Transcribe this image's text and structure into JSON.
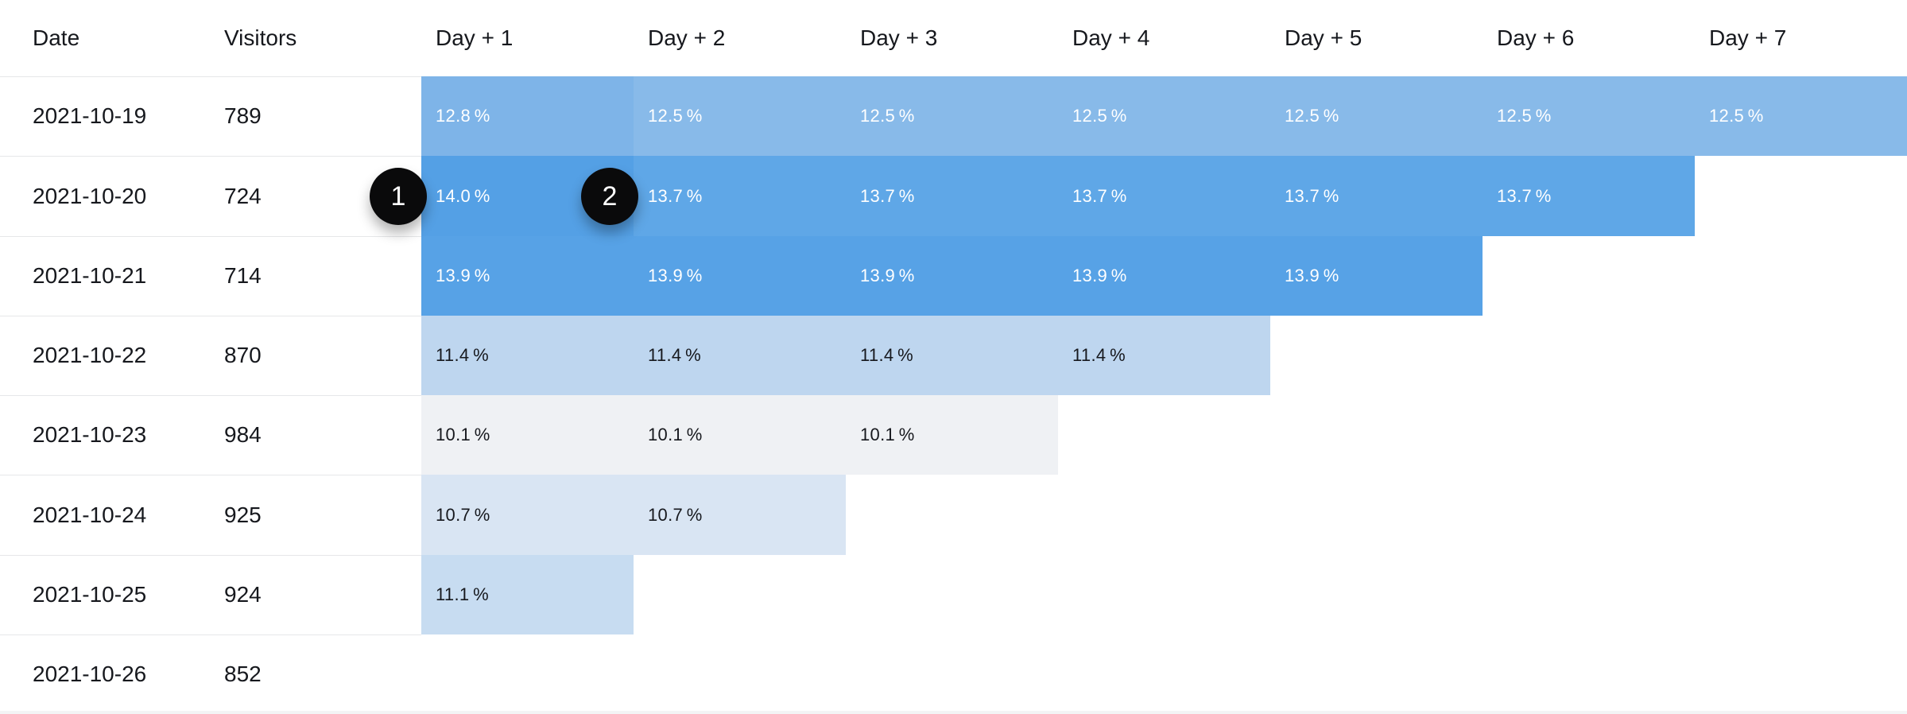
{
  "table": {
    "columns": [
      "Date",
      "Visitors",
      "Day + 1",
      "Day + 2",
      "Day + 3",
      "Day + 4",
      "Day + 5",
      "Day + 6",
      "Day + 7"
    ],
    "rows": [
      {
        "date": "2021-10-19",
        "visitors": "789",
        "cells": [
          {
            "value": "12.8 %",
            "bg": "#7eb4e8",
            "text_light": true
          },
          {
            "value": "12.5 %",
            "bg": "#88bae9",
            "text_light": true
          },
          {
            "value": "12.5 %",
            "bg": "#88bae9",
            "text_light": true
          },
          {
            "value": "12.5 %",
            "bg": "#88bae9",
            "text_light": true
          },
          {
            "value": "12.5 %",
            "bg": "#88bae9",
            "text_light": true
          },
          {
            "value": "12.5 %",
            "bg": "#88bae9",
            "text_light": true
          },
          {
            "value": "12.5 %",
            "bg": "#88bae9",
            "text_light": true
          }
        ]
      },
      {
        "date": "2021-10-20",
        "visitors": "724",
        "cells": [
          {
            "value": "14.0 %",
            "bg": "#54a0e5",
            "text_light": true
          },
          {
            "value": "13.7 %",
            "bg": "#5fa7e7",
            "text_light": true
          },
          {
            "value": "13.7 %",
            "bg": "#5fa7e7",
            "text_light": true
          },
          {
            "value": "13.7 %",
            "bg": "#5fa7e7",
            "text_light": true
          },
          {
            "value": "13.7 %",
            "bg": "#5fa7e7",
            "text_light": true
          },
          {
            "value": "13.7 %",
            "bg": "#5fa7e7",
            "text_light": true
          }
        ]
      },
      {
        "date": "2021-10-21",
        "visitors": "714",
        "cells": [
          {
            "value": "13.9 %",
            "bg": "#57a2e6",
            "text_light": true
          },
          {
            "value": "13.9 %",
            "bg": "#57a2e6",
            "text_light": true
          },
          {
            "value": "13.9 %",
            "bg": "#57a2e6",
            "text_light": true
          },
          {
            "value": "13.9 %",
            "bg": "#57a2e6",
            "text_light": true
          },
          {
            "value": "13.9 %",
            "bg": "#57a2e6",
            "text_light": true
          }
        ]
      },
      {
        "date": "2021-10-22",
        "visitors": "870",
        "cells": [
          {
            "value": "11.4 %",
            "bg": "#bed6ef",
            "text_light": false
          },
          {
            "value": "11.4 %",
            "bg": "#bed6ef",
            "text_light": false
          },
          {
            "value": "11.4 %",
            "bg": "#bed6ef",
            "text_light": false
          },
          {
            "value": "11.4 %",
            "bg": "#bed6ef",
            "text_light": false
          }
        ]
      },
      {
        "date": "2021-10-23",
        "visitors": "984",
        "cells": [
          {
            "value": "10.1 %",
            "bg": "#eff1f4",
            "text_light": false
          },
          {
            "value": "10.1 %",
            "bg": "#eff1f4",
            "text_light": false
          },
          {
            "value": "10.1 %",
            "bg": "#eff1f4",
            "text_light": false
          }
        ]
      },
      {
        "date": "2021-10-24",
        "visitors": "925",
        "cells": [
          {
            "value": "10.7 %",
            "bg": "#d9e5f3",
            "text_light": false
          },
          {
            "value": "10.7 %",
            "bg": "#d9e5f3",
            "text_light": false
          }
        ]
      },
      {
        "date": "2021-10-25",
        "visitors": "924",
        "cells": [
          {
            "value": "11.1 %",
            "bg": "#c7dcf1",
            "text_light": false
          }
        ]
      },
      {
        "date": "2021-10-26",
        "visitors": "852",
        "cells": []
      }
    ]
  },
  "annotations": [
    {
      "label": "1"
    },
    {
      "label": "2"
    }
  ],
  "colors": {
    "text_dark": "#16181d",
    "text_light": "#ffffff",
    "row_divider": "#e6e7e9",
    "annotation_bg": "#0a0a0b",
    "bottom_edge": "#f3f4f5"
  }
}
